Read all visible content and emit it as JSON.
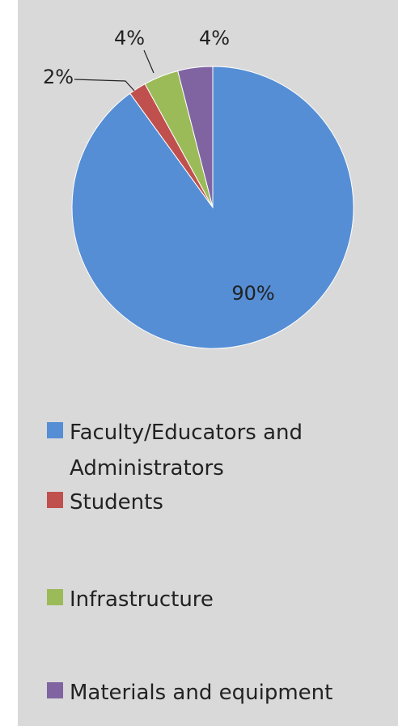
{
  "chart_data": {
    "type": "pie",
    "categories": [
      "Faculty/Educators and Administrators",
      "Students",
      "Infrastructure",
      "Materials and equipment"
    ],
    "values": [
      90,
      2,
      4,
      4
    ],
    "value_labels": [
      "90%",
      "2%",
      "4%",
      "4%"
    ],
    "colors": [
      "#558ed5",
      "#c0504d",
      "#9bbb59",
      "#8064a2"
    ],
    "legend": "bottom"
  }
}
